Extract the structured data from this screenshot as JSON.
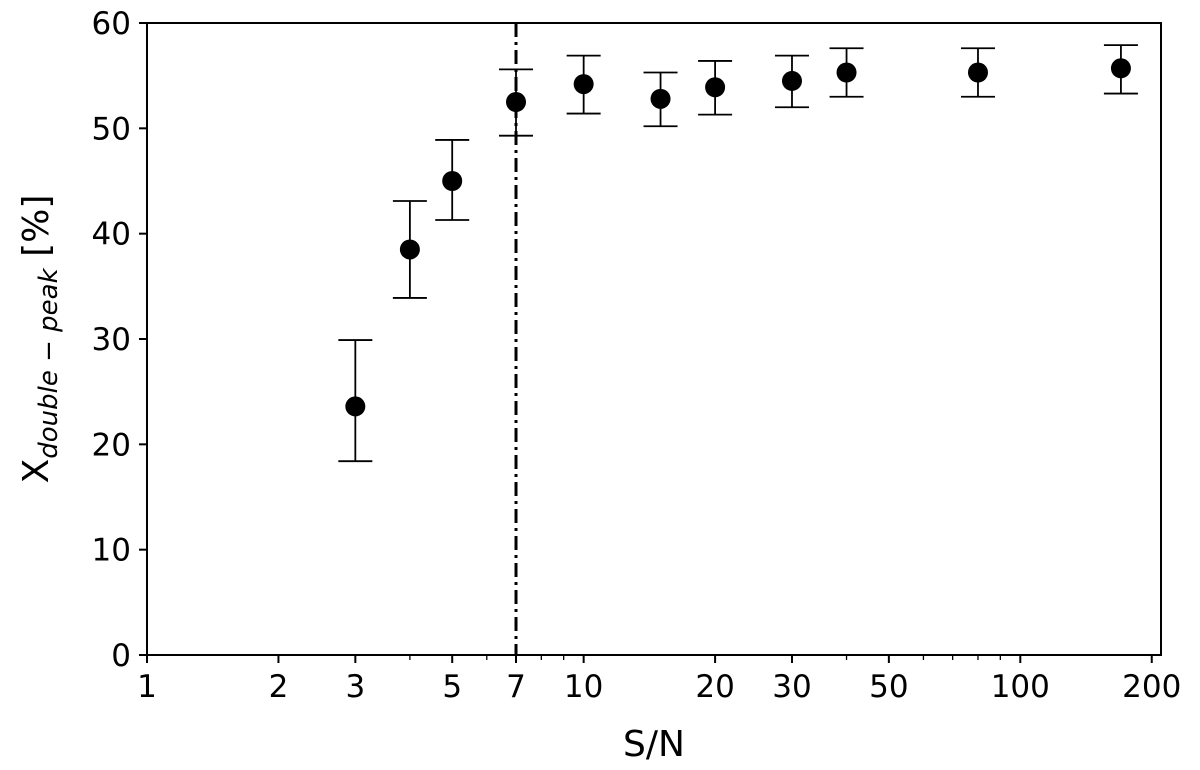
{
  "chart_data": {
    "type": "scatter",
    "xscale": "log",
    "xlabel": "S/N",
    "ylabel_main": "X",
    "ylabel_sub": "double − peak",
    "ylabel_tail": " [%]",
    "xlim": [
      1,
      210
    ],
    "ylim": [
      0,
      60
    ],
    "xticks": [
      1,
      2,
      3,
      5,
      7,
      10,
      20,
      30,
      50,
      100,
      200
    ],
    "xtick_labels": [
      "1",
      "2",
      "3",
      "5",
      "7",
      "10",
      "20",
      "30",
      "50",
      "100",
      "200"
    ],
    "yticks": [
      0,
      10,
      20,
      30,
      40,
      50,
      60
    ],
    "ytick_labels": [
      "0",
      "10",
      "20",
      "30",
      "40",
      "50",
      "60"
    ],
    "grid": false,
    "vline": {
      "x": 7,
      "style": "dash-dot"
    },
    "points": [
      {
        "x": 3,
        "y": 23.6,
        "yerr_low": 18.4,
        "yerr_high": 29.9
      },
      {
        "x": 4,
        "y": 38.5,
        "yerr_low": 33.9,
        "yerr_high": 43.1
      },
      {
        "x": 5,
        "y": 45.0,
        "yerr_low": 41.3,
        "yerr_high": 48.9
      },
      {
        "x": 7,
        "y": 52.5,
        "yerr_low": 49.3,
        "yerr_high": 55.6
      },
      {
        "x": 10,
        "y": 54.2,
        "yerr_low": 51.4,
        "yerr_high": 56.9
      },
      {
        "x": 15,
        "y": 52.8,
        "yerr_low": 50.2,
        "yerr_high": 55.3
      },
      {
        "x": 20,
        "y": 53.9,
        "yerr_low": 51.3,
        "yerr_high": 56.4
      },
      {
        "x": 30,
        "y": 54.5,
        "yerr_low": 52.0,
        "yerr_high": 56.9
      },
      {
        "x": 40,
        "y": 55.3,
        "yerr_low": 53.0,
        "yerr_high": 57.6
      },
      {
        "x": 80,
        "y": 55.3,
        "yerr_low": 53.0,
        "yerr_high": 57.6
      },
      {
        "x": 170,
        "y": 55.7,
        "yerr_low": 53.3,
        "yerr_high": 57.9
      }
    ]
  }
}
